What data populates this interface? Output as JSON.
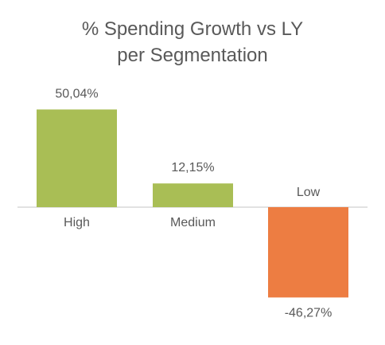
{
  "chart_data": {
    "type": "bar",
    "title_lines": [
      "% Spending Growth vs LY",
      "per Segmentation"
    ],
    "categories": [
      "High",
      "Medium",
      "Low"
    ],
    "values": [
      50.04,
      12.15,
      -46.27
    ],
    "value_labels": [
      "50,04%",
      "12,15%",
      "-46,27%"
    ],
    "xlabel": "",
    "ylabel": "",
    "ylim": [
      -50,
      55
    ],
    "grid": false,
    "legend": "none",
    "colors": {
      "positive": "#A9BE55",
      "negative": "#ED7D42",
      "axis": "#D9D9D9",
      "text": "#595959"
    }
  }
}
